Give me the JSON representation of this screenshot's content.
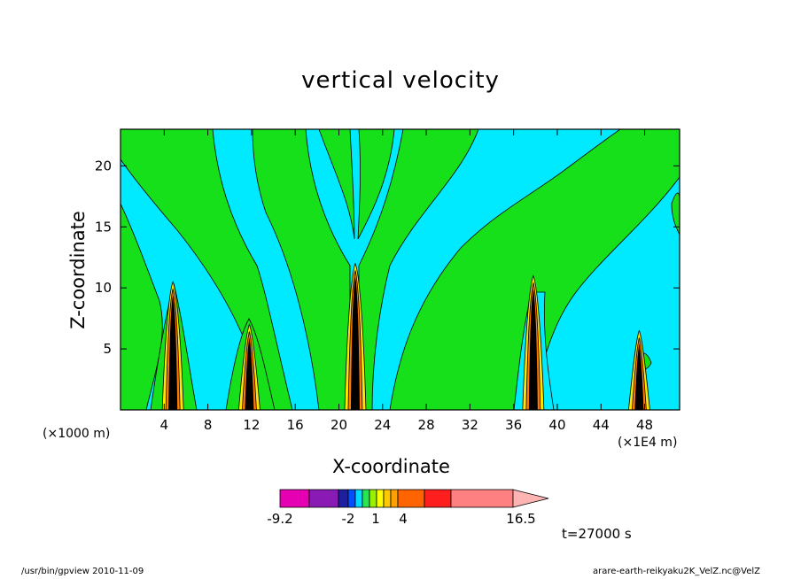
{
  "chart_data": {
    "type": "heatmap",
    "title": "vertical velocity",
    "xlabel": "X-coordinate",
    "ylabel": "Z-coordinate",
    "x_unit_left": "(×1000 m)",
    "x_unit_right": "(×1E4 m)",
    "xlim": [
      0,
      51.2
    ],
    "ylim": [
      0,
      23
    ],
    "x_ticks": [
      4,
      8,
      12,
      16,
      20,
      24,
      28,
      32,
      36,
      40,
      44,
      48
    ],
    "y_ticks": [
      5,
      10,
      15,
      20
    ],
    "time_label": "t=27000 s",
    "colorbar": {
      "labels": [
        "-9.2",
        "-2",
        "1",
        "4",
        "16.5"
      ],
      "colors": [
        "#e600b4",
        "#8a1ab4",
        "#1e1ea0",
        "#0050ff",
        "#00dcff",
        "#28e650",
        "#96f000",
        "#ffff00",
        "#ffc800",
        "#ffa000",
        "#ff6400",
        "#ff1e1e",
        "#ff8080",
        "#ffb4b4"
      ]
    },
    "columns": [
      {
        "x": 4.8,
        "ztop": 10.5
      },
      {
        "x": 11.8,
        "ztop": 7.0
      },
      {
        "x": 21.5,
        "ztop": 12.0
      },
      {
        "x": 37.8,
        "ztop": 11.0
      },
      {
        "x": 47.5,
        "ztop": 6.5
      }
    ]
  },
  "footer": {
    "left": "/usr/bin/gpview   2010-11-09",
    "right": "arare-earth-reikyaku2K_VelZ.nc@VelZ"
  }
}
